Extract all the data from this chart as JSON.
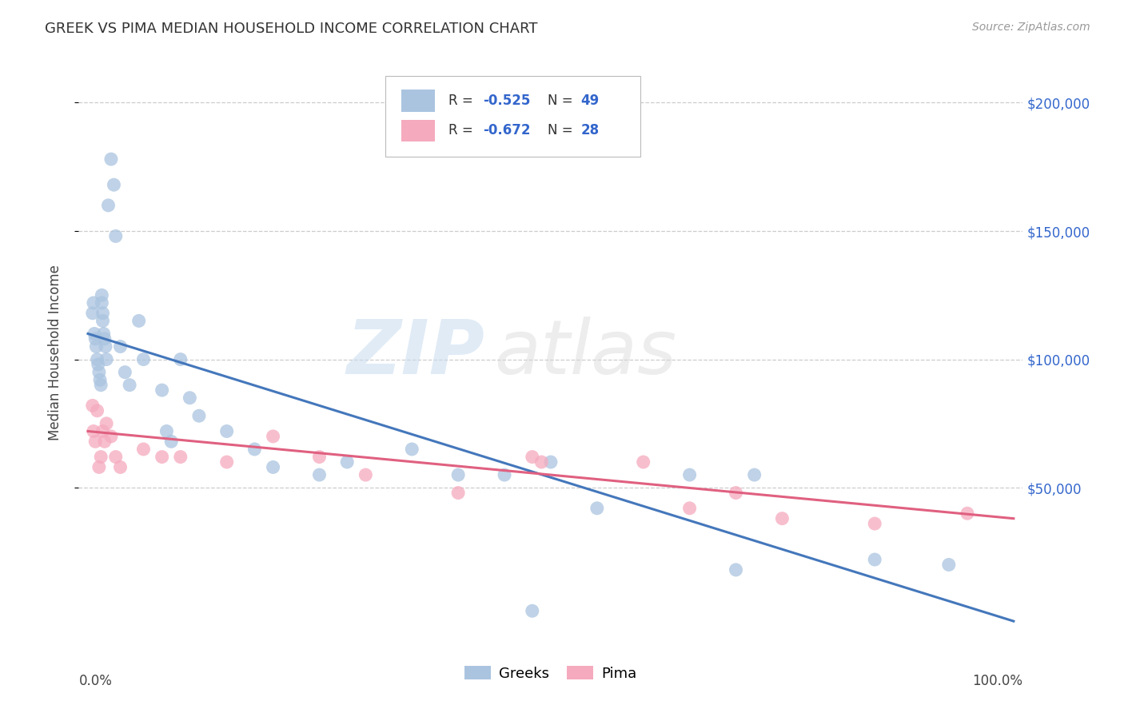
{
  "title": "GREEK VS PIMA MEDIAN HOUSEHOLD INCOME CORRELATION CHART",
  "source": "Source: ZipAtlas.com",
  "ylabel": "Median Household Income",
  "watermark_zip": "ZIP",
  "watermark_atlas": "atlas",
  "blue_label": "Greeks",
  "pink_label": "Pima",
  "blue_R_text": "R = ",
  "blue_R_val": "-0.525",
  "blue_N_text": "N = ",
  "blue_N_val": "49",
  "pink_R_text": "R = ",
  "pink_R_val": "-0.672",
  "pink_N_text": "N = ",
  "pink_N_val": "28",
  "blue_scatter_color": "#aac4e0",
  "blue_line_color": "#4477bb",
  "pink_scatter_color": "#f5aabe",
  "pink_line_color": "#e06080",
  "accent_blue": "#3366cc",
  "bg_color": "#ffffff",
  "grid_color": "#cccccc",
  "ytick_labels": [
    "$50,000",
    "$100,000",
    "$150,000",
    "$200,000"
  ],
  "ytick_values": [
    50000,
    100000,
    150000,
    200000
  ],
  "ylim": [
    -10000,
    215000
  ],
  "xlim": [
    -0.01,
    1.01
  ],
  "blue_points_x": [
    0.005,
    0.006,
    0.007,
    0.008,
    0.009,
    0.01,
    0.011,
    0.012,
    0.013,
    0.014,
    0.015,
    0.015,
    0.016,
    0.016,
    0.017,
    0.018,
    0.019,
    0.02,
    0.022,
    0.025,
    0.028,
    0.03,
    0.035,
    0.04,
    0.045,
    0.055,
    0.06,
    0.08,
    0.085,
    0.09,
    0.1,
    0.11,
    0.12,
    0.15,
    0.18,
    0.2,
    0.25,
    0.28,
    0.35,
    0.4,
    0.45,
    0.5,
    0.55,
    0.65,
    0.7,
    0.72,
    0.85,
    0.93,
    0.48
  ],
  "blue_points_y": [
    118000,
    122000,
    110000,
    108000,
    105000,
    100000,
    98000,
    95000,
    92000,
    90000,
    125000,
    122000,
    118000,
    115000,
    110000,
    108000,
    105000,
    100000,
    160000,
    178000,
    168000,
    148000,
    105000,
    95000,
    90000,
    115000,
    100000,
    88000,
    72000,
    68000,
    100000,
    85000,
    78000,
    72000,
    65000,
    58000,
    55000,
    60000,
    65000,
    55000,
    55000,
    60000,
    42000,
    55000,
    18000,
    55000,
    22000,
    20000,
    2000
  ],
  "pink_points_x": [
    0.005,
    0.006,
    0.008,
    0.01,
    0.012,
    0.014,
    0.016,
    0.018,
    0.02,
    0.025,
    0.03,
    0.035,
    0.06,
    0.08,
    0.1,
    0.15,
    0.2,
    0.25,
    0.3,
    0.4,
    0.48,
    0.49,
    0.6,
    0.65,
    0.7,
    0.75,
    0.85,
    0.95
  ],
  "pink_points_y": [
    82000,
    72000,
    68000,
    80000,
    58000,
    62000,
    72000,
    68000,
    75000,
    70000,
    62000,
    58000,
    65000,
    62000,
    62000,
    60000,
    70000,
    62000,
    55000,
    48000,
    62000,
    60000,
    60000,
    42000,
    48000,
    38000,
    36000,
    40000
  ],
  "blue_trendline": [
    0.0,
    1.0,
    110000,
    -2000
  ],
  "pink_trendline": [
    0.0,
    1.0,
    72000,
    38000
  ],
  "xtick_positions": [
    0.0,
    0.2,
    0.4,
    0.6,
    0.8,
    1.0
  ],
  "xtick_minor": [
    0.1,
    0.3,
    0.5,
    0.7,
    0.9
  ]
}
